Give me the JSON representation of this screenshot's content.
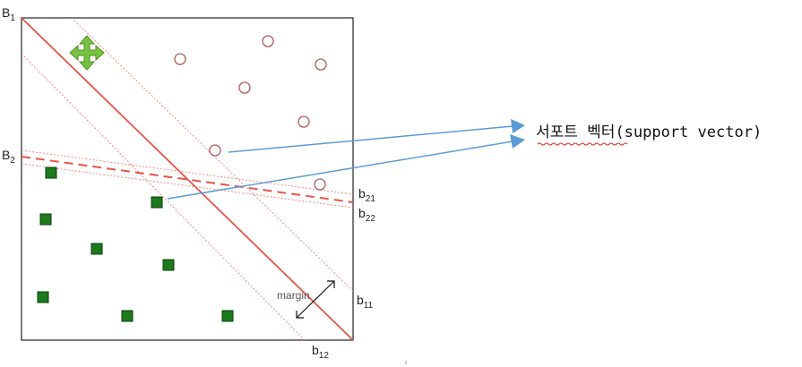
{
  "labels": {
    "B1": {
      "main": "B",
      "sub": "1"
    },
    "B2": {
      "main": "B",
      "sub": "2"
    },
    "b21": {
      "main": "b",
      "sub": "21"
    },
    "b22": {
      "main": "b",
      "sub": "22"
    },
    "b11": {
      "main": "b",
      "sub": "11"
    },
    "b12": {
      "main": "b",
      "sub": "12"
    },
    "margin": "margin"
  },
  "annotation": {
    "korean": "서포트 벡터",
    "english": "(support vector)"
  },
  "colors": {
    "frame": "#222222",
    "boundary": "#e8534a",
    "margin_line": "#f08a84",
    "circle": "#b05a5a",
    "square_fill": "#1d7a1d",
    "square_stroke": "#0b3d0b",
    "arrow": "#5b9bd5",
    "move_icon": "#7cc242",
    "spell_underline": "#e02020"
  },
  "icons": {
    "move": "move-arrows-icon"
  }
}
